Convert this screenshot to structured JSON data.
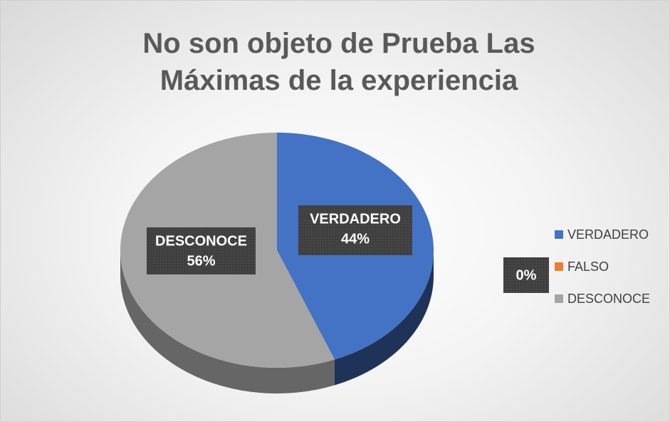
{
  "chart_data": {
    "type": "pie3d",
    "title": "No son objeto de Prueba Las Máximas de la experiencia",
    "categories": [
      "VERDADERO",
      "FALSO",
      "DESCONOCE"
    ],
    "values": [
      44,
      0,
      56
    ],
    "value_labels": [
      "44%",
      "0%",
      "56%"
    ],
    "label_show_category": [
      true,
      false,
      true
    ],
    "colors": [
      "#4472c4",
      "#ed7d31",
      "#a5a5a5"
    ],
    "legend": "right"
  }
}
